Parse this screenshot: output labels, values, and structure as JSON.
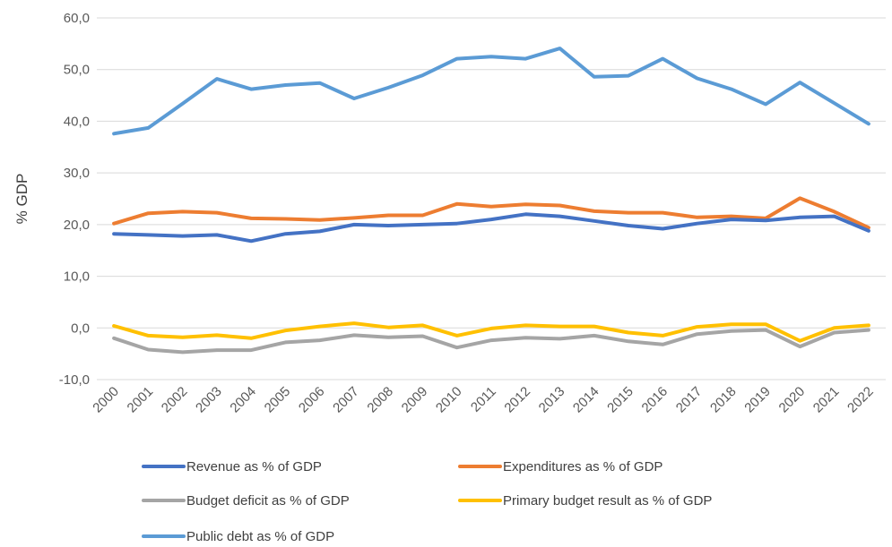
{
  "chart_data": {
    "type": "line",
    "title": "",
    "xlabel": "",
    "ylabel": "% GDP",
    "ylim": [
      -10,
      60
    ],
    "yticks": [
      -10,
      0,
      10,
      20,
      30,
      40,
      50,
      60
    ],
    "ytick_labels": [
      "-10,0",
      "0,0",
      "10,0",
      "20,0",
      "30,0",
      "40,0",
      "50,0",
      "60,0"
    ],
    "grid": true,
    "legend_position": "bottom",
    "categories": [
      "2000",
      "2001",
      "2002",
      "2003",
      "2004",
      "2005",
      "2006",
      "2007",
      "2008",
      "2009",
      "2010",
      "2011",
      "2012",
      "2013",
      "2014",
      "2015",
      "2016",
      "2017",
      "2018",
      "2019",
      "2020",
      "2021",
      "2022"
    ],
    "series": [
      {
        "name": "Revenue as % of GDP",
        "color": "#4472c4",
        "values": [
          18.2,
          18.0,
          17.8,
          18.0,
          16.8,
          18.2,
          18.7,
          20.0,
          19.8,
          20.0,
          20.2,
          21.0,
          22.0,
          21.6,
          20.7,
          19.8,
          19.2,
          20.2,
          21.0,
          20.8,
          21.4,
          21.6,
          18.8
        ]
      },
      {
        "name": "Expenditures as % of GDP",
        "color": "#ed7d31",
        "values": [
          20.2,
          22.2,
          22.5,
          22.3,
          21.2,
          21.1,
          20.9,
          21.3,
          21.8,
          21.8,
          24.0,
          23.5,
          23.9,
          23.7,
          22.6,
          22.3,
          22.3,
          21.4,
          21.6,
          21.2,
          25.1,
          22.5,
          19.4
        ]
      },
      {
        "name": "Budget deficit as % of GDP",
        "color": "#a5a5a5",
        "values": [
          -2.0,
          -4.2,
          -4.7,
          -4.3,
          -4.3,
          -2.8,
          -2.4,
          -1.4,
          -1.8,
          -1.6,
          -3.8,
          -2.4,
          -1.9,
          -2.1,
          -1.5,
          -2.6,
          -3.2,
          -1.2,
          -0.6,
          -0.4,
          -3.6,
          -0.9,
          -0.4
        ]
      },
      {
        "name": "Primary budget result as % of GDP",
        "color": "#ffc000",
        "values": [
          0.4,
          -1.5,
          -1.8,
          -1.4,
          -2.0,
          -0.5,
          0.3,
          0.9,
          0.1,
          0.5,
          -1.5,
          -0.1,
          0.5,
          0.3,
          0.3,
          -0.9,
          -1.5,
          0.2,
          0.7,
          0.7,
          -2.5,
          0.0,
          0.5
        ]
      },
      {
        "name": "Public debt as % of GDP",
        "color": "#5b9bd5",
        "values": [
          37.6,
          38.7,
          43.4,
          48.2,
          46.2,
          47.0,
          47.4,
          44.4,
          46.5,
          48.9,
          52.1,
          52.5,
          52.1,
          54.1,
          48.6,
          48.8,
          52.1,
          48.3,
          46.2,
          43.3,
          47.5,
          43.5,
          39.5
        ]
      }
    ]
  }
}
